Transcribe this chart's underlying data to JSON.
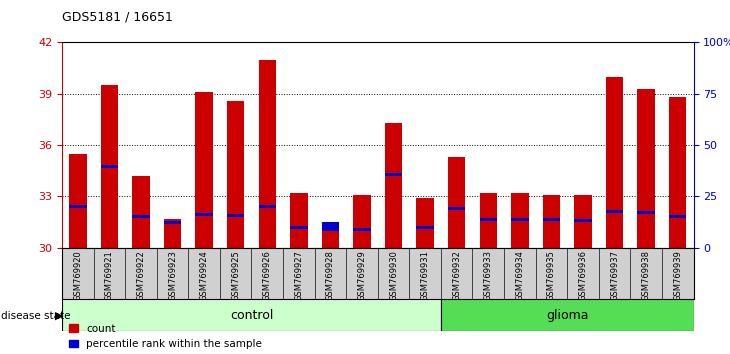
{
  "title": "GDS5181 / 16651",
  "samples": [
    "GSM769920",
    "GSM769921",
    "GSM769922",
    "GSM769923",
    "GSM769924",
    "GSM769925",
    "GSM769926",
    "GSM769927",
    "GSM769928",
    "GSM769929",
    "GSM769930",
    "GSM769931",
    "GSM769932",
    "GSM769933",
    "GSM769934",
    "GSM769935",
    "GSM769936",
    "GSM769937",
    "GSM769938",
    "GSM769939"
  ],
  "count_values": [
    35.5,
    39.5,
    34.2,
    31.7,
    39.1,
    38.6,
    41.0,
    33.2,
    31.2,
    33.1,
    37.3,
    32.9,
    35.3,
    33.2,
    33.2,
    33.1,
    33.1,
    40.0,
    39.3,
    38.8
  ],
  "percentile_values": [
    32.3,
    34.65,
    31.75,
    31.4,
    31.85,
    31.8,
    32.35,
    31.1,
    31.0,
    31.0,
    34.2,
    31.1,
    32.2,
    31.55,
    31.55,
    31.55,
    31.5,
    32.05,
    32.0,
    31.75
  ],
  "blue_heights": [
    0.18,
    0.18,
    0.18,
    0.18,
    0.18,
    0.18,
    0.18,
    0.18,
    0.5,
    0.18,
    0.18,
    0.18,
    0.18,
    0.18,
    0.18,
    0.18,
    0.18,
    0.18,
    0.18,
    0.18
  ],
  "control_count": 12,
  "glioma_count": 8,
  "y_min": 30,
  "y_max": 42,
  "y_ticks": [
    30,
    33,
    36,
    39,
    42
  ],
  "right_y_ticks": [
    0,
    25,
    50,
    75,
    100
  ],
  "right_y_labels": [
    "0",
    "25",
    "50",
    "75",
    "100%"
  ],
  "bar_color": "#cc0000",
  "blue_color": "#0000cc",
  "control_color": "#ccffcc",
  "glioma_color": "#55dd55",
  "bg_color": "#d0d0d0",
  "plot_bg": "#ffffff",
  "bar_width": 0.55
}
